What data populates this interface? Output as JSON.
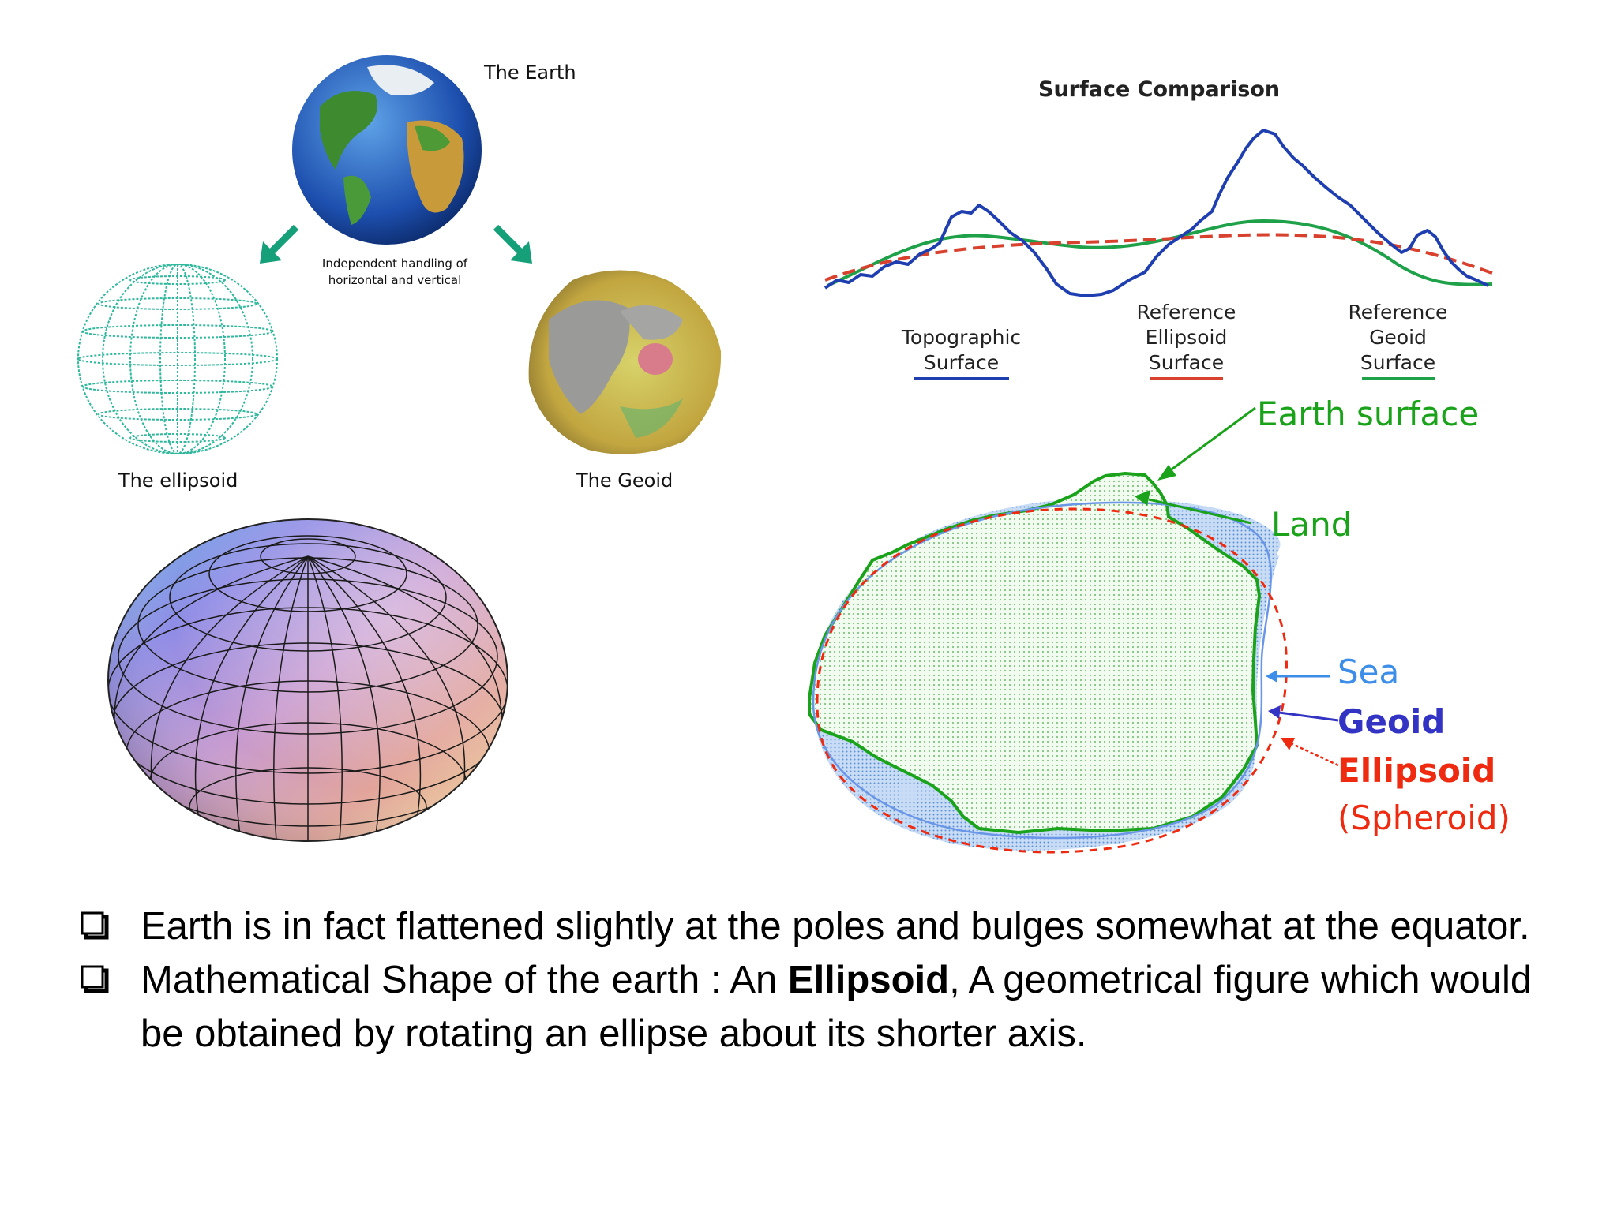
{
  "top_left_figure": {
    "earth_label": "The Earth",
    "note": [
      "Independent handling of",
      "horizontal and vertical"
    ],
    "ellipsoid_label": "The ellipsoid",
    "geoid_label": "The Geoid"
  },
  "surface_comparison": {
    "title": "Surface Comparison",
    "legend": [
      {
        "lines": [
          "Topographic",
          "Surface"
        ],
        "color": "#1f3fb0"
      },
      {
        "lines": [
          "Reference",
          "Ellipsoid",
          "Surface"
        ],
        "color": "#d9412f"
      },
      {
        "lines": [
          "Reference",
          "Geoid",
          "Surface"
        ],
        "color": "#1fa14a"
      }
    ]
  },
  "earth_diagram": {
    "earth_surface": "Earth surface",
    "land": "Land",
    "sea": "Sea",
    "geoid": "Geoid",
    "ellipsoid": "Ellipsoid",
    "spheroid": "(Spheroid)",
    "colors": {
      "green": "#1aa31a",
      "sea": "#3c8ee8",
      "geoid": "#3333c4",
      "ellipsoid": "#ee2a10"
    }
  },
  "bullets": [
    {
      "text": "Earth is in fact flattened slightly at the poles and bulges somewhat at the equator."
    },
    {
      "before": "Mathematical Shape of the earth : An ",
      "bold": "Ellipsoid",
      "after": ", A geometrical figure which would be obtained by rotating an ellipse about its shorter axis."
    }
  ]
}
